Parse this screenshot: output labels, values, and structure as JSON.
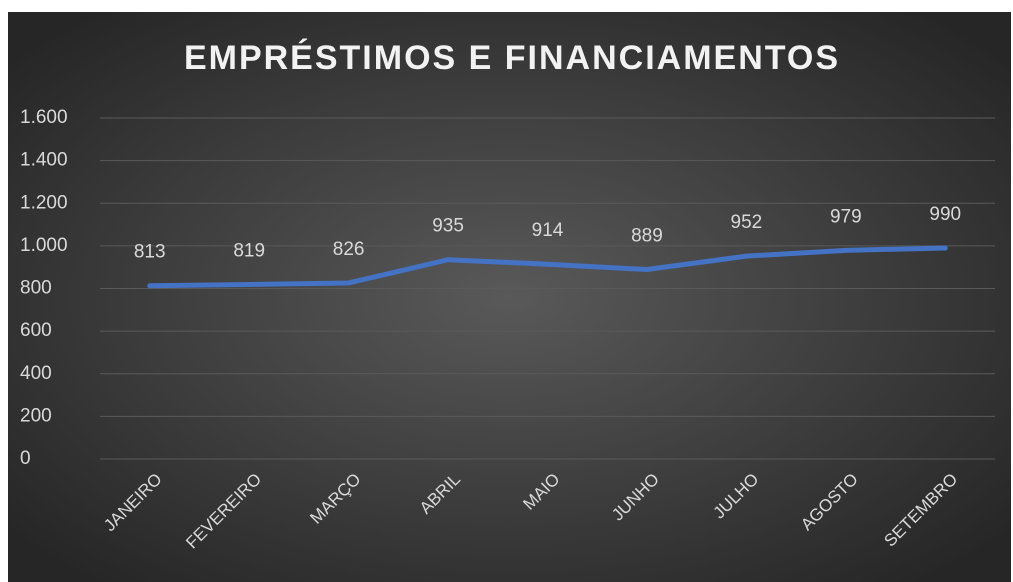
{
  "chart_data": {
    "type": "line",
    "title": "EMPRÉSTIMOS E FINANCIAMENTOS",
    "categories": [
      "JANEIRO",
      "FEVEREIRO",
      "MARÇO",
      "ABRIL",
      "MAIO",
      "JUNHO",
      "JULHO",
      "AGOSTO",
      "SETEMBRO"
    ],
    "values": [
      813,
      819,
      826,
      935,
      914,
      889,
      952,
      979,
      990
    ],
    "color": "#4472c4",
    "ylim": [
      0,
      1600
    ],
    "yticks": [
      0,
      200,
      400,
      600,
      800,
      {
        "value": 1000,
        "label": "1.000"
      },
      {
        "value": 1200,
        "label": "1.200"
      },
      {
        "value": 1400,
        "label": "1.400"
      },
      {
        "value": 1600,
        "label": "1.600"
      }
    ],
    "grid": true
  }
}
